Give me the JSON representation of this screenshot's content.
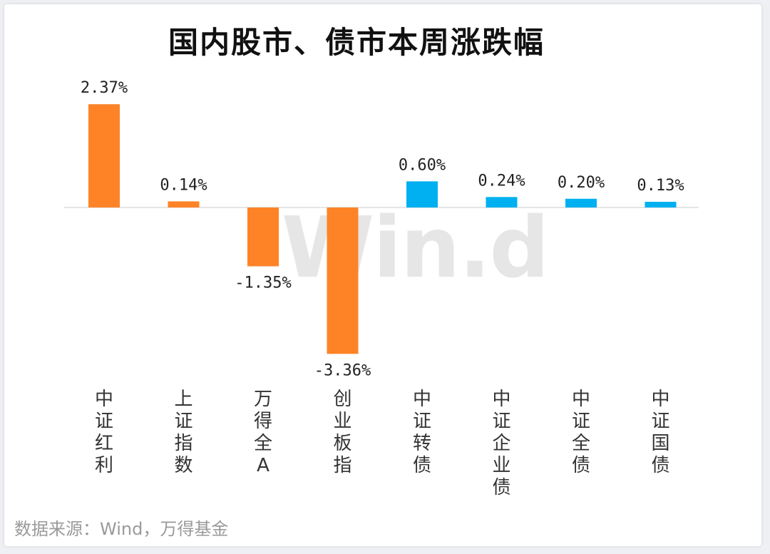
{
  "title": "国内股市、债市本周涨跌幅",
  "source": "数据来源：Wind，万得基金",
  "watermark": "Win.d",
  "colors": {
    "equity": "#fe8327",
    "bond": "#00b0f0",
    "axis": "#dddddd"
  },
  "chart_data": {
    "type": "bar",
    "title": "国内股市、债市本周涨跌幅",
    "xlabel": "",
    "ylabel": "",
    "categories": [
      "中证红利",
      "上证指数",
      "万得全A",
      "创业板指",
      "中证转债",
      "中证企业债",
      "中证全债",
      "中证国债"
    ],
    "values": [
      2.37,
      0.14,
      -1.35,
      -3.36,
      0.6,
      0.24,
      0.2,
      0.13
    ],
    "data_labels": [
      "2.37%",
      "0.14%",
      "-1.35%",
      "-3.36%",
      "0.60%",
      "0.24%",
      "0.20%",
      "0.13%"
    ],
    "bar_colors": [
      "equity",
      "equity",
      "equity",
      "equity",
      "bond",
      "bond",
      "bond",
      "bond"
    ],
    "unit": "%",
    "grid": false,
    "legend": "none"
  }
}
